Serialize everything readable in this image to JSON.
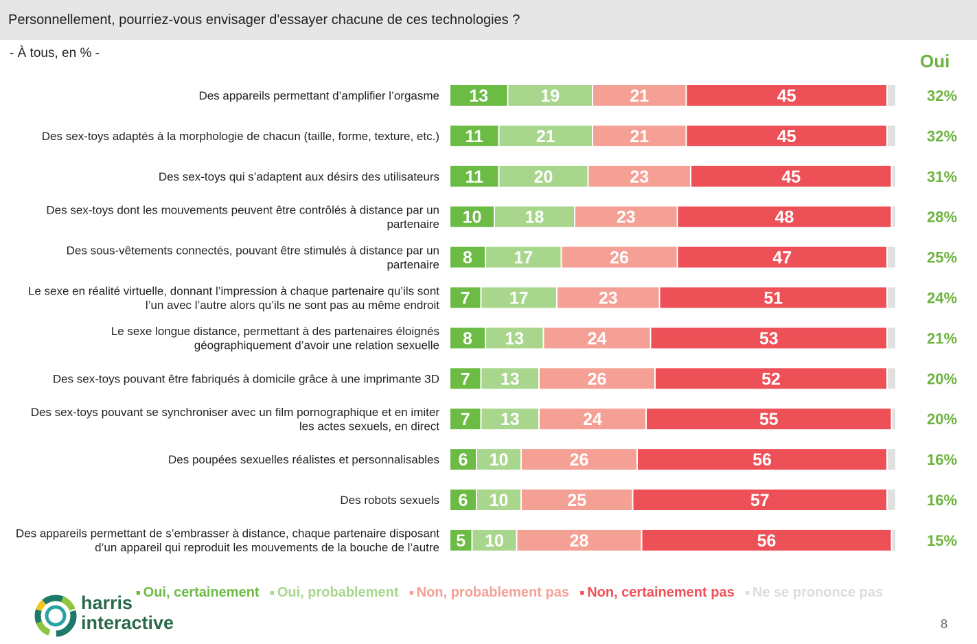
{
  "header": {
    "title": "Personnellement, pourriez-vous envisager d'essayer chacune de ces technologies ?",
    "subtitle": "- À tous, en % -"
  },
  "oui_header": "Oui",
  "colors": {
    "oui_certainement": "#6cbb45",
    "oui_probablement": "#a8d68c",
    "non_probablement_pas": "#f5a095",
    "non_certainement_pas": "#ee5058",
    "ne_se_prononce_pas": "#e0e0e0",
    "oui_text": "#6db33f"
  },
  "chart_data": {
    "type": "bar",
    "stacked": true,
    "orientation": "horizontal",
    "categories": [
      "Des appareils permettant d’amplifier l’orgasme",
      "Des sex-toys adaptés à la morphologie de chacun (taille, forme, texture, etc.)",
      "Des sex-toys qui s’adaptent aux désirs des utilisateurs",
      "Des sex-toys dont les mouvements peuvent être contrôlés à distance par un partenaire",
      "Des sous-vêtements connectés, pouvant être stimulés à distance par un partenaire",
      "Le sexe en réalité virtuelle, donnant l’impression à chaque partenaire qu’ils sont l’un avec l’autre alors qu’ils ne sont pas au même endroit",
      "Le sexe longue distance, permettant à des partenaires éloignés géographiquement d’avoir une relation sexuelle",
      "Des sex-toys pouvant être fabriqués à domicile grâce à une imprimante 3D",
      "Des sex-toys pouvant se synchroniser avec un film pornographique et en imiter les actes sexuels, en direct",
      "Des poupées sexuelles réalistes et personnalisables",
      "Des robots sexuels",
      "Des appareils permettant de s’embrasser à distance, chaque partenaire disposant d’un appareil qui reproduit les mouvements de la bouche de l’autre"
    ],
    "series": [
      {
        "name": "Oui, certainement",
        "values": [
          13,
          11,
          11,
          10,
          8,
          7,
          8,
          7,
          7,
          6,
          6,
          5
        ]
      },
      {
        "name": "Oui, probablement",
        "values": [
          19,
          21,
          20,
          18,
          17,
          17,
          13,
          13,
          13,
          10,
          10,
          10
        ]
      },
      {
        "name": "Non, probablement pas",
        "values": [
          21,
          21,
          23,
          23,
          26,
          23,
          24,
          26,
          24,
          26,
          25,
          28
        ]
      },
      {
        "name": "Non, certainement pas",
        "values": [
          45,
          45,
          45,
          48,
          47,
          51,
          53,
          52,
          55,
          56,
          57,
          56
        ]
      },
      {
        "name": "Ne se prononce pas",
        "values": [
          2,
          2,
          1,
          1,
          2,
          2,
          2,
          2,
          1,
          2,
          2,
          1
        ]
      }
    ],
    "oui_totals": [
      "32%",
      "32%",
      "31%",
      "28%",
      "25%",
      "24%",
      "21%",
      "20%",
      "20%",
      "16%",
      "16%",
      "15%"
    ]
  },
  "legend": [
    {
      "label": "Oui, certainement",
      "color": "#6cbb45"
    },
    {
      "label": "Oui, probablement",
      "color": "#a8d68c"
    },
    {
      "label": "Non, probablement pas",
      "color": "#f5a095"
    },
    {
      "label": "Non, certainement pas",
      "color": "#ee5058"
    },
    {
      "label": "Ne se prononce pas",
      "color": "#dcdcdc"
    }
  ],
  "logo": {
    "line1": "harris",
    "line2": "interactive"
  },
  "page_number": "8"
}
